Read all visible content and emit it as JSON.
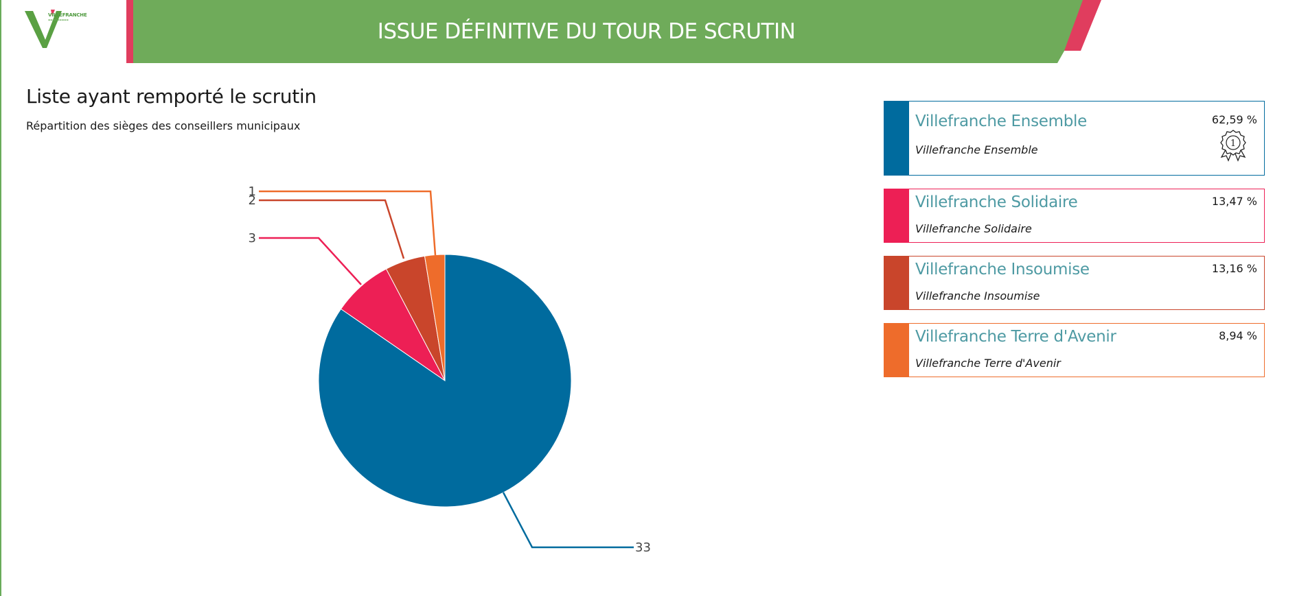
{
  "header": {
    "logo_text": "VILLEFRANCHE",
    "title": "ISSUE DÉFINITIVE DU TOUR DE SCRUTIN",
    "banner_color": "#6fab5a",
    "accent_color": "#e03d5e"
  },
  "section": {
    "title": "Liste ayant remporté le scrutin",
    "subtitle": "Répartition des sièges des conseillers municipaux"
  },
  "chart_data": {
    "type": "pie",
    "categories": [
      "Villefranche Ensemble",
      "Villefranche Solidaire",
      "Villefranche Insoumise",
      "Villefranche Terre d'Avenir"
    ],
    "values": [
      33,
      3,
      2,
      1
    ],
    "labels": [
      "33",
      "3",
      "2",
      "1"
    ],
    "colors": [
      "#006b9e",
      "#ed1f55",
      "#c9452b",
      "#ee6c2b"
    ]
  },
  "lists": [
    {
      "name": "Villefranche Ensemble",
      "subtitle": "Villefranche Ensemble",
      "percent": "62,59 %",
      "color": "#006b9e",
      "winner": true,
      "medal_rank": "1"
    },
    {
      "name": "Villefranche Solidaire",
      "subtitle": "Villefranche Solidaire",
      "percent": "13,47 %",
      "color": "#ed1f55",
      "winner": false
    },
    {
      "name": "Villefranche Insoumise",
      "subtitle": "Villefranche Insoumise",
      "percent": "13,16 %",
      "color": "#c9452b",
      "winner": false
    },
    {
      "name": "Villefranche Terre d'Avenir",
      "subtitle": "Villefranche Terre d'Avenir",
      "percent": "8,94 %",
      "color": "#ee6c2b",
      "winner": false
    }
  ]
}
